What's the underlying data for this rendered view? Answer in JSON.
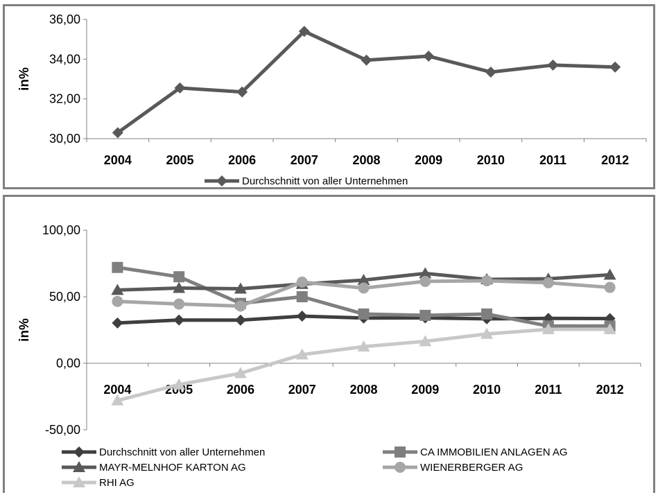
{
  "chart_data": [
    {
      "type": "line",
      "x": [
        "2004",
        "2005",
        "2006",
        "2007",
        "2008",
        "2009",
        "2010",
        "2011",
        "2012"
      ],
      "ylabel": "in%",
      "ylim": [
        30,
        36
      ],
      "yticks": [
        "30,00",
        "32,00",
        "34,00",
        "36,00"
      ],
      "yticks_values": [
        30,
        32,
        34,
        36
      ],
      "legend_position": "bottom",
      "series": [
        {
          "name": "Durchschnitt von aller Unternehmen",
          "color": "#595959",
          "marker": "diamond",
          "values": [
            30.3,
            32.55,
            32.35,
            35.4,
            33.95,
            34.15,
            33.35,
            33.7,
            33.6
          ]
        }
      ]
    },
    {
      "type": "line",
      "x": [
        "2004",
        "2005",
        "2006",
        "2007",
        "2008",
        "2009",
        "2010",
        "2011",
        "2012"
      ],
      "ylabel": "in%",
      "ylim": [
        -50,
        100
      ],
      "yticks": [
        "-50,00",
        "0,00",
        "50,00",
        "100,00"
      ],
      "yticks_values": [
        -50,
        0,
        50,
        100
      ],
      "legend_position": "bottom",
      "series": [
        {
          "name": "Durchschnitt von aller Unternehmen",
          "color": "#3f3f3f",
          "marker": "diamond",
          "values": [
            30.3,
            32.5,
            32.4,
            35.4,
            34.0,
            34.1,
            33.4,
            33.7,
            33.6
          ]
        },
        {
          "name": "CA IMMOBILIEN ANLAGEN AG",
          "color": "#7f7f7f",
          "marker": "square",
          "values": [
            72,
            65,
            45,
            50,
            37,
            36,
            37,
            28,
            28
          ]
        },
        {
          "name": "MAYR-MELNHOF KARTON AG",
          "color": "#595959",
          "marker": "triangle",
          "values": [
            55,
            56.5,
            56,
            59.5,
            62.5,
            67.5,
            63,
            63.5,
            66.5
          ]
        },
        {
          "name": "WIENERBERGER AG",
          "color": "#a6a6a6",
          "marker": "circle",
          "values": [
            46.5,
            44.5,
            43,
            61,
            56.5,
            61.5,
            62,
            60.5,
            57
          ]
        },
        {
          "name": "RHI AG",
          "color": "#c8c8c8",
          "marker": "triangle",
          "values": [
            -28,
            -16,
            -7.5,
            6.5,
            12.5,
            16.5,
            22,
            25.5,
            25.5
          ]
        }
      ]
    }
  ]
}
